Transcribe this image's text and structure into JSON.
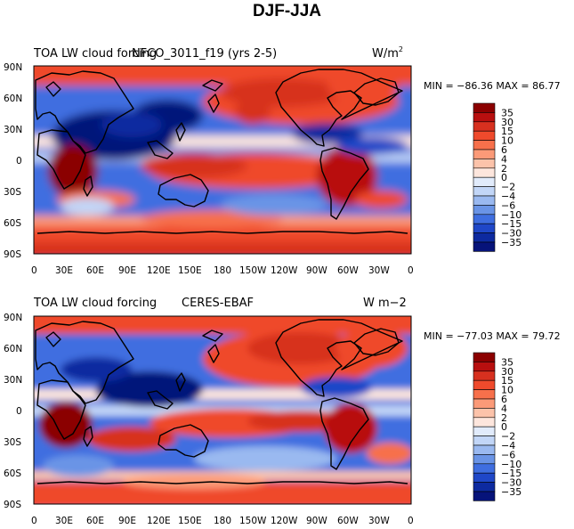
{
  "title": "DJF-JJA",
  "panels": [
    {
      "left_title": "TOA LW cloud forcing",
      "center_title": "NFCO_3011_f19 (yrs 2-5)",
      "units": "W/m",
      "units_sup": "2",
      "stats": "MIN = −86.36 MAX =  86.77",
      "y_ticks": [
        "90N",
        "60N",
        "30N",
        "0",
        "30S",
        "60S",
        "90S"
      ],
      "x_ticks": [
        "0",
        "30E",
        "60E",
        "90E",
        "120E",
        "150E",
        "180",
        "150W",
        "120W",
        "90W",
        "60W",
        "30W",
        "0"
      ]
    },
    {
      "left_title": "TOA LW cloud forcing",
      "center_title": "CERES-EBAF",
      "units": "W m−2",
      "units_sup": "",
      "stats": "MIN = −77.03 MAX =  79.72",
      "y_ticks": [
        "90N",
        "60N",
        "30N",
        "0",
        "30S",
        "60S",
        "90S"
      ],
      "x_ticks": [
        "0",
        "30E",
        "60E",
        "90E",
        "120E",
        "150E",
        "180",
        "150W",
        "120W",
        "90W",
        "60W",
        "30W",
        "0"
      ]
    }
  ],
  "colorbar": {
    "labels": [
      "35",
      "30",
      "15",
      "10",
      "6",
      "4",
      "2",
      "0",
      "−2",
      "−4",
      "−6",
      "−10",
      "−15",
      "−30",
      "−35"
    ],
    "colors": [
      "#8b0000",
      "#b80f0f",
      "#d7301f",
      "#ef4a2c",
      "#f7704b",
      "#fb9a78",
      "#fcc3aa",
      "#fde6dd",
      "#e1ebfb",
      "#c2d6f7",
      "#9ab9f0",
      "#6a94e6",
      "#3f6ee0",
      "#1f47c8",
      "#0d2aa0",
      "#06137a"
    ]
  }
}
